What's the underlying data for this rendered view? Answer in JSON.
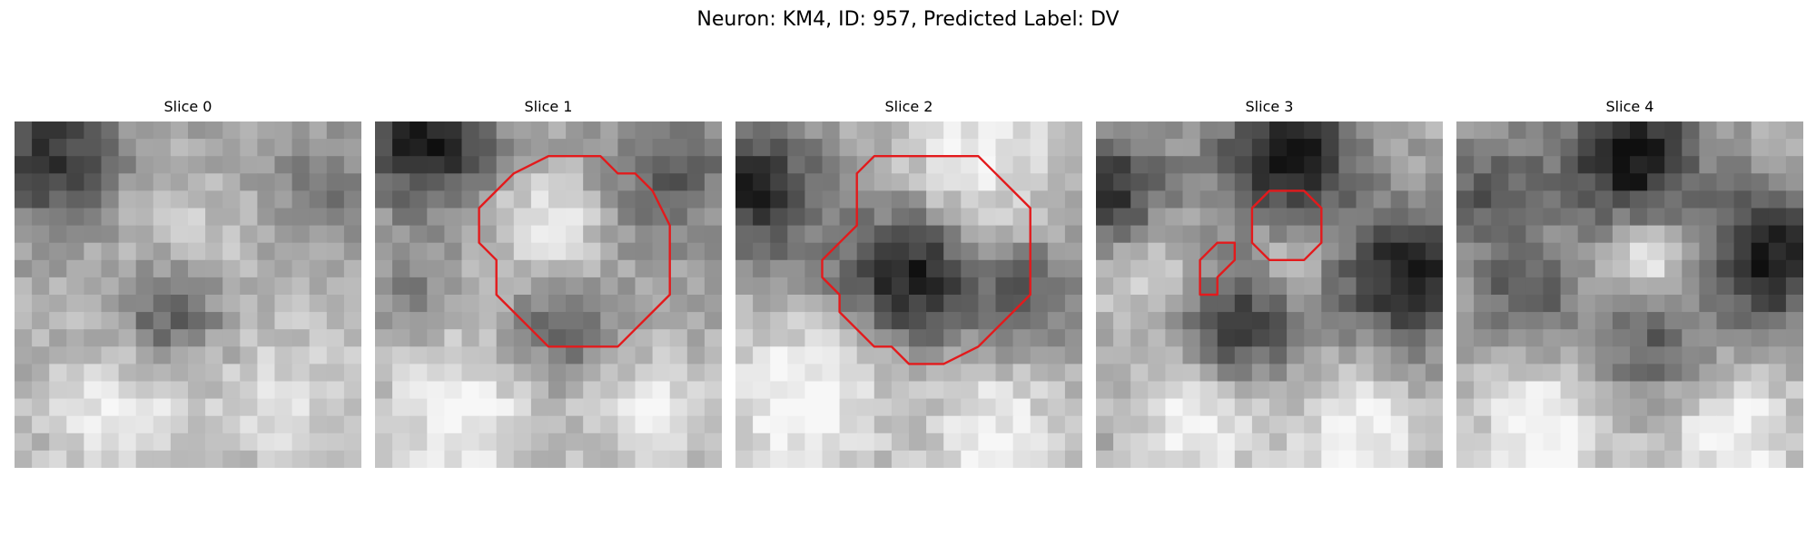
{
  "figure": {
    "title": "Neuron: KM4, ID: 957, Predicted Label: DV",
    "contour_color": "#e31a1c",
    "panels": [
      {
        "title": "Slice 0",
        "contours": []
      },
      {
        "title": "Slice 1",
        "contours": [
          [
            [
              12,
              2
            ],
            [
              13,
              2
            ],
            [
              14,
              3
            ],
            [
              15,
              3
            ],
            [
              16,
              4
            ],
            [
              17,
              6
            ],
            [
              17,
              10
            ],
            [
              16,
              11
            ],
            [
              15,
              12
            ],
            [
              14,
              13
            ],
            [
              12,
              13
            ],
            [
              10,
              13
            ],
            [
              9,
              12
            ],
            [
              8,
              11
            ],
            [
              7,
              10
            ],
            [
              7,
              8
            ],
            [
              6,
              7
            ],
            [
              6,
              5
            ],
            [
              7,
              4
            ],
            [
              8,
              3
            ],
            [
              10,
              2
            ]
          ]
        ]
      },
      {
        "title": "Slice 2",
        "contours": [
          [
            [
              10,
              2
            ],
            [
              12,
              2
            ],
            [
              14,
              2
            ],
            [
              15,
              3
            ],
            [
              16,
              4
            ],
            [
              17,
              5
            ],
            [
              17,
              8
            ],
            [
              17,
              10
            ],
            [
              16,
              11
            ],
            [
              15,
              12
            ],
            [
              14,
              13
            ],
            [
              12,
              14
            ],
            [
              10,
              14
            ],
            [
              9,
              13
            ],
            [
              8,
              13
            ],
            [
              7,
              12
            ],
            [
              6,
              11
            ],
            [
              6,
              10
            ],
            [
              5,
              9
            ],
            [
              5,
              8
            ],
            [
              6,
              7
            ],
            [
              7,
              6
            ],
            [
              7,
              3
            ],
            [
              8,
              2
            ]
          ]
        ]
      },
      {
        "title": "Slice 3",
        "contours": [
          [
            [
              11,
              4
            ],
            [
              12,
              4
            ],
            [
              13,
              5
            ],
            [
              13,
              7
            ],
            [
              12,
              8
            ],
            [
              11,
              8
            ],
            [
              10,
              8
            ],
            [
              9,
              7
            ],
            [
              9,
              6
            ],
            [
              9,
              5
            ],
            [
              10,
              4
            ]
          ],
          [
            [
              7,
              7
            ],
            [
              8,
              7
            ],
            [
              8,
              8
            ],
            [
              7,
              9
            ],
            [
              7,
              10
            ],
            [
              6,
              10
            ],
            [
              6,
              9
            ],
            [
              6,
              8
            ]
          ]
        ]
      },
      {
        "title": "Slice 4",
        "contours": []
      }
    ]
  }
}
